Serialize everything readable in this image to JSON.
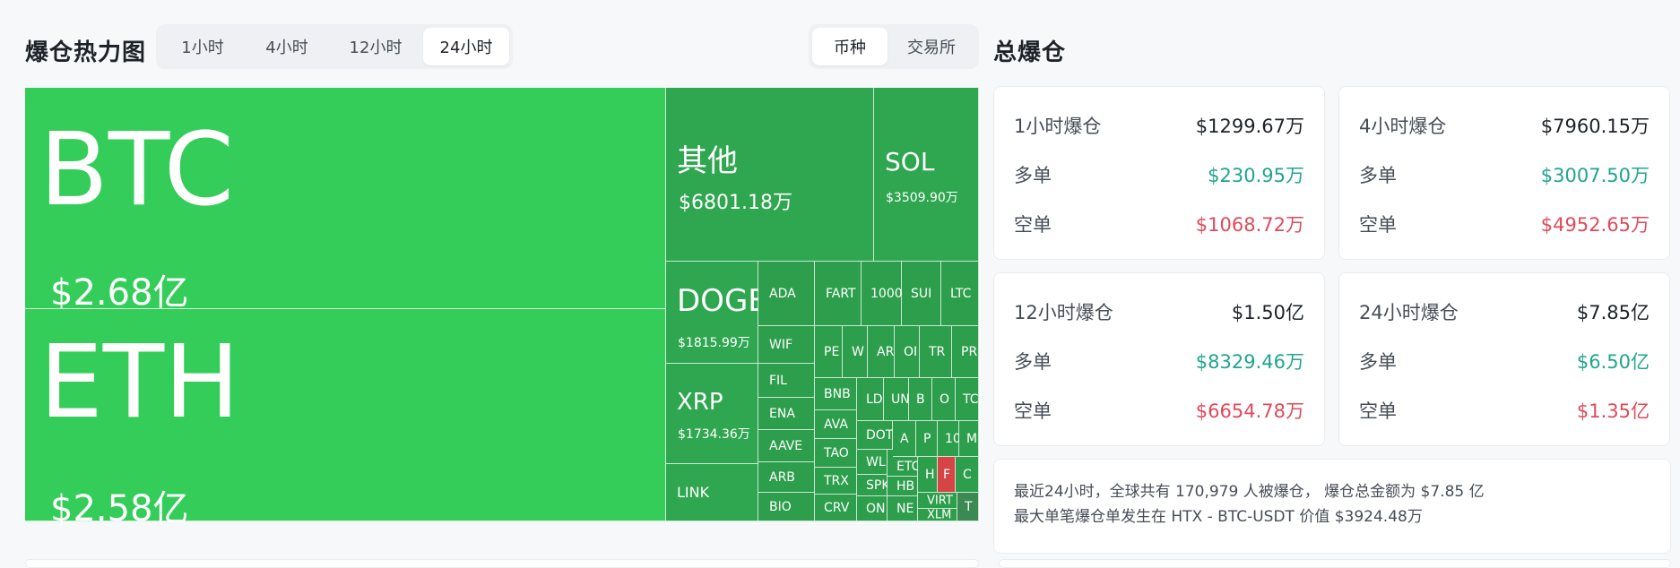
{
  "heatmap": {
    "title": "爆仓热力图",
    "time_options": [
      "1小时",
      "4小时",
      "12小时",
      "24小时"
    ],
    "time_selected": "24小时",
    "group_options": [
      "币种",
      "交易所"
    ],
    "group_selected": "币种",
    "cells": {
      "btc": {
        "symbol": "BTC",
        "value": "$2.68亿"
      },
      "eth": {
        "symbol": "ETH",
        "value": "$2.58亿"
      },
      "other": {
        "symbol": "其他",
        "value": "$6801.18万"
      },
      "sol": {
        "symbol": "SOL",
        "value": "$3509.90万"
      },
      "doge": {
        "symbol": "DOGE",
        "value": "$1815.99万"
      },
      "xrp": {
        "symbol": "XRP",
        "value": "$1734.36万"
      },
      "link": {
        "symbol": "LINK"
      },
      "ada": {
        "symbol": "ADA"
      },
      "fart": {
        "symbol": "FART"
      },
      "k1000": {
        "symbol": "1000"
      },
      "sui": {
        "symbol": "SUI"
      },
      "ltc": {
        "symbol": "LTC"
      },
      "wif": {
        "symbol": "WIF"
      },
      "pe": {
        "symbol": "PE"
      },
      "w2": {
        "symbol": "W"
      },
      "ar": {
        "symbol": "AR"
      },
      "ol": {
        "symbol": "OI"
      },
      "tr": {
        "symbol": "TR"
      },
      "pr": {
        "symbol": "PR"
      },
      "fil": {
        "symbol": "FIL"
      },
      "bnb": {
        "symbol": "BNB"
      },
      "ld": {
        "symbol": "LD"
      },
      "un": {
        "symbol": "UN"
      },
      "b1": {
        "symbol": "B"
      },
      "o1": {
        "symbol": "O"
      },
      "tc": {
        "symbol": "TC"
      },
      "ena": {
        "symbol": "ENA"
      },
      "ava": {
        "symbol": "AVA"
      },
      "dot": {
        "symbol": "DOT"
      },
      "a1": {
        "symbol": "A"
      },
      "p1": {
        "symbol": "P"
      },
      "n10": {
        "symbol": "10"
      },
      "m1": {
        "symbol": "M"
      },
      "aave": {
        "symbol": "AAVE"
      },
      "tao": {
        "symbol": "TAO"
      },
      "wl": {
        "symbol": "WL"
      },
      "etc": {
        "symbol": "ETC"
      },
      "h1": {
        "symbol": "H"
      },
      "f1": {
        "symbol": "F"
      },
      "c1": {
        "symbol": "C"
      },
      "arb": {
        "symbol": "ARB"
      },
      "trx": {
        "symbol": "TRX"
      },
      "spk": {
        "symbol": "SPK"
      },
      "hb": {
        "symbol": "HB"
      },
      "bio": {
        "symbol": "BIO"
      },
      "crv": {
        "symbol": "CRV"
      },
      "on": {
        "symbol": "ON"
      },
      "ne": {
        "symbol": "NE"
      },
      "virt": {
        "symbol": "VIRT"
      },
      "xlm": {
        "symbol": "XLM"
      },
      "t1": {
        "symbol": "T"
      }
    }
  },
  "totals": {
    "title": "总爆仓",
    "cards": [
      {
        "label": "1小时爆仓",
        "total": "$1299.67万",
        "long_label": "多单",
        "long": "$230.95万",
        "short_label": "空单",
        "short": "$1068.72万"
      },
      {
        "label": "4小时爆仓",
        "total": "$7960.15万",
        "long_label": "多单",
        "long": "$3007.50万",
        "short_label": "空单",
        "short": "$4952.65万"
      },
      {
        "label": "12小时爆仓",
        "total": "$1.50亿",
        "long_label": "多单",
        "long": "$8329.46万",
        "short_label": "空单",
        "short": "$6654.78万"
      },
      {
        "label": "24小时爆仓",
        "total": "$7.85亿",
        "long_label": "多单",
        "long": "$6.50亿",
        "short_label": "空单",
        "short": "$1.35亿"
      }
    ],
    "summary_line1": "最近24小时，全球共有 170,979 人被爆仓， 爆仓总金额为 $7.85 亿",
    "summary_line2": "最大单笔爆仓单发生在 HTX - BTC-USDT 价值 $3924.48万"
  },
  "colors": {
    "big_cell": "#35cd5a",
    "cell": "#2d9f4c",
    "short_cell": "#d64545",
    "long_text": "#20a58f",
    "short_text": "#e04a5a"
  }
}
